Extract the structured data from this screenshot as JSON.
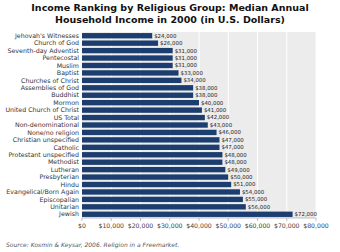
{
  "chart_data": {
    "type": "bar",
    "orientation": "horizontal",
    "title": "Income Ranking by Religious Group: Median Annual\nHousehold Income in 2000 (in U.S. Dollars)",
    "categories": [
      "Jehovah's Witnesses",
      "Church of God",
      "Seventh-day Adventist",
      "Pentecostal",
      "Muslim",
      "Baptist",
      "Churches of Christ",
      "Assemblies of God",
      "Buddhist",
      "Mormon",
      "United Church of Christ",
      "US Total",
      "Non-denominational",
      "None/no religion",
      "Christian unspecified",
      "Catholic",
      "Protestant unspecified",
      "Methodist",
      "Lutheran",
      "Presbyterian",
      "Hindu",
      "Evangelical/Born Again",
      "Episcopalian",
      "Unitarian",
      "Jewish"
    ],
    "values": [
      24000,
      26000,
      31000,
      31000,
      31000,
      33000,
      34000,
      38000,
      38000,
      40000,
      41000,
      42000,
      43000,
      46000,
      47000,
      47000,
      48000,
      48000,
      49000,
      50000,
      51000,
      54000,
      55000,
      56000,
      72000
    ],
    "value_labels": [
      "$24,000",
      "$26,000",
      "$31,000",
      "$31,000",
      "$31,000",
      "$33,000",
      "$34,000",
      "$38,000",
      "$38,000",
      "$40,000",
      "$41,000",
      "$42,000",
      "$43,000",
      "$46,000",
      "$47,000",
      "$47,000",
      "$48,000",
      "$48,000",
      "$49,000",
      "$50,000",
      "$51,000",
      "$54,000",
      "$55,000",
      "$56,000",
      "$72,000"
    ],
    "color": "#1b3d6f",
    "data_labels": true,
    "grid": true,
    "xlim": [
      0,
      80000
    ],
    "xticks": [
      {
        "value": 0,
        "label": "$0"
      },
      {
        "value": 10000,
        "label": "$10,000"
      },
      {
        "value": 20000,
        "label": "$20,000"
      },
      {
        "value": 30000,
        "label": "$30,000"
      },
      {
        "value": 40000,
        "label": "$40,000"
      },
      {
        "value": 50000,
        "label": "$50,000"
      },
      {
        "value": 60000,
        "label": "$60,000"
      },
      {
        "value": 70000,
        "label": "$70,000"
      },
      {
        "value": 80000,
        "label": "$80,000"
      }
    ],
    "annotations": [
      "Source: Kosmin & Keysar, 2006. Religion in a Freemarket."
    ]
  }
}
